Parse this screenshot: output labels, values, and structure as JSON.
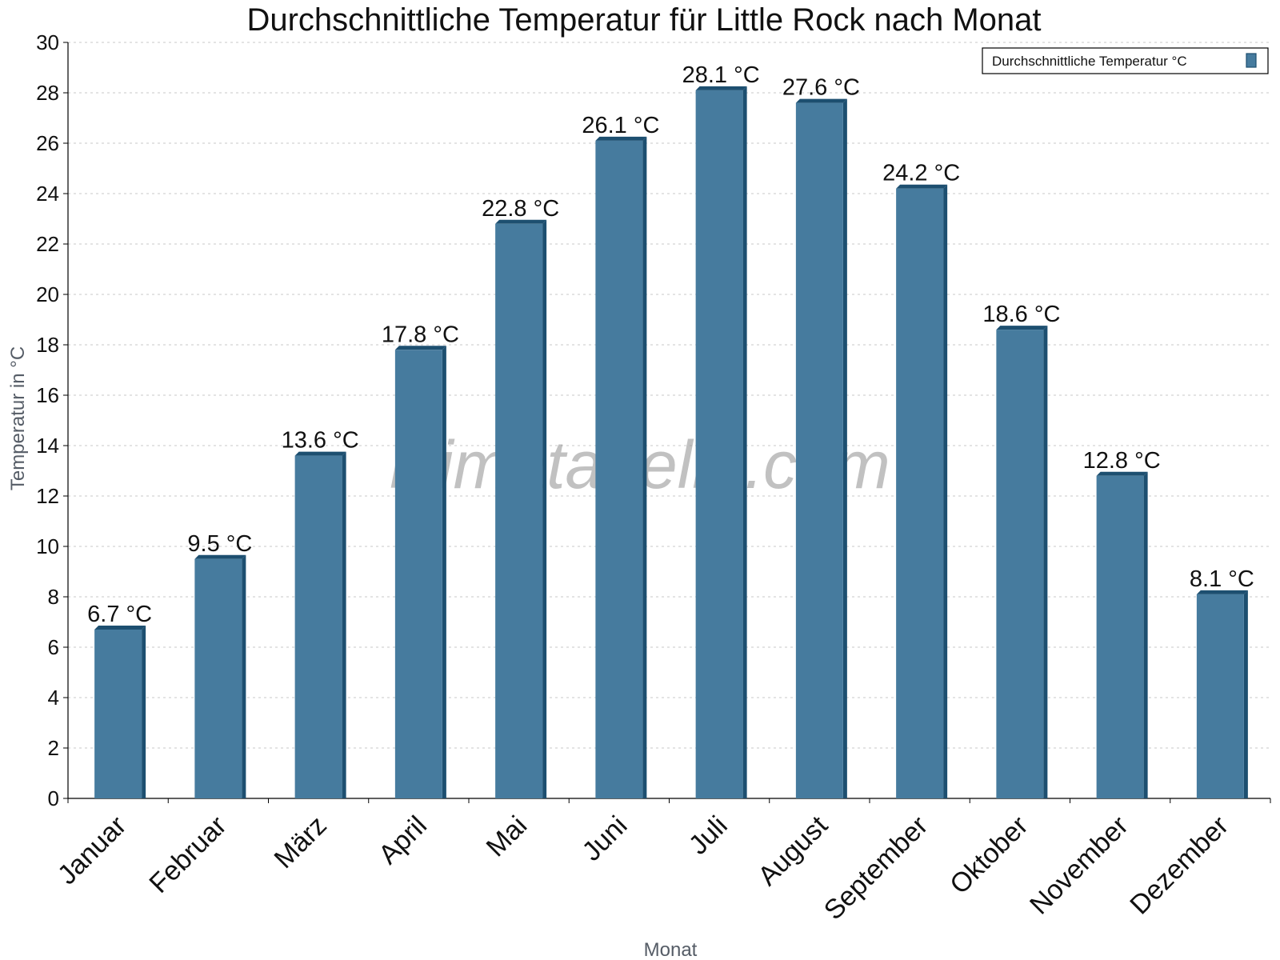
{
  "chart_data": {
    "type": "bar",
    "title": "Durchschnittliche Temperatur für Little Rock nach Monat",
    "xlabel": "Monat",
    "ylabel": "Temperatur in °C",
    "categories": [
      "Januar",
      "Februar",
      "März",
      "April",
      "Mai",
      "Juni",
      "Juli",
      "August",
      "September",
      "Oktober",
      "November",
      "Dezember"
    ],
    "series": [
      {
        "name": "Durchschnittliche Temperatur °C",
        "values": [
          6.7,
          9.5,
          13.6,
          17.8,
          22.8,
          26.1,
          28.1,
          27.6,
          24.2,
          18.6,
          12.8,
          8.1
        ],
        "color": "#467b9e"
      }
    ],
    "data_labels": [
      "6.7 °C",
      "9.5 °C",
      "13.6 °C",
      "17.8 °C",
      "22.8 °C",
      "26.1 °C",
      "28.1 °C",
      "27.6 °C",
      "24.2 °C",
      "18.6 °C",
      "12.8 °C",
      "8.1 °C"
    ],
    "ylim": [
      0,
      30
    ],
    "yticks": [
      0,
      2,
      4,
      6,
      8,
      10,
      12,
      14,
      16,
      18,
      20,
      22,
      24,
      26,
      28,
      30
    ],
    "grid": true,
    "legend_position": "top-right"
  },
  "watermark": "klimatabelle.com",
  "colors": {
    "bar_face": "#467b9e",
    "bar_edge": "#1d4f70",
    "grid": "#c8c8c8"
  }
}
